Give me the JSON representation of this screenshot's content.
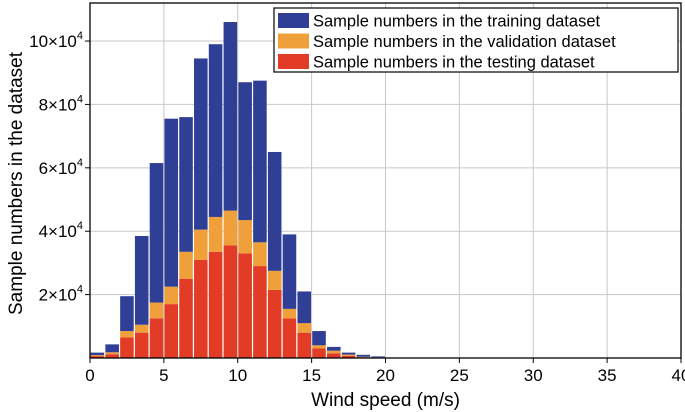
{
  "chart_data": {
    "type": "bar",
    "stacked": true,
    "xlabel": "Wind speed (m/s)",
    "ylabel": "Sample numbers in the dataset",
    "xlim": [
      0,
      40
    ],
    "ylim": [
      0,
      112000
    ],
    "x_ticks": [
      0,
      5,
      10,
      15,
      20,
      25,
      30,
      35,
      40
    ],
    "x_tick_labels": [
      "0",
      "5",
      "10",
      "15",
      "20",
      "25",
      "30",
      "35",
      "40"
    ],
    "y_ticks": [
      20000,
      40000,
      60000,
      80000,
      100000
    ],
    "y_tick_labels": [
      {
        "mantissa": "2×10",
        "exp": "4"
      },
      {
        "mantissa": "4×10",
        "exp": "4"
      },
      {
        "mantissa": "6×10",
        "exp": "4"
      },
      {
        "mantissa": "8×10",
        "exp": "4"
      },
      {
        "mantissa": "10×10",
        "exp": "4"
      }
    ],
    "grid": true,
    "legend_position": "top-right",
    "bin_width": 1,
    "x": [
      0.5,
      1.5,
      2.5,
      3.5,
      4.5,
      5.5,
      6.5,
      7.5,
      8.5,
      9.5,
      10.5,
      11.5,
      12.5,
      13.5,
      14.5,
      15.5,
      16.5,
      17.5,
      18.5,
      19.5
    ],
    "series": [
      {
        "name": "Sample numbers in the testing dataset",
        "color": "#e23b26",
        "values": [
          600,
          1200,
          6500,
          8000,
          12500,
          17000,
          25000,
          31000,
          33500,
          35500,
          33000,
          29000,
          21500,
          12500,
          8000,
          3000,
          1500,
          700,
          200,
          100
        ]
      },
      {
        "name": "Sample numbers in the validation dataset",
        "color": "#f0a03a",
        "values": [
          300,
          600,
          2000,
          2500,
          5000,
          5500,
          8500,
          9500,
          11000,
          11000,
          10500,
          7500,
          6000,
          3000,
          3000,
          1000,
          800,
          400,
          200,
          100
        ]
      },
      {
        "name": "Sample numbers in the training dataset",
        "color": "#2f3f95",
        "values": [
          800,
          2500,
          11000,
          28000,
          44000,
          53000,
          42500,
          54000,
          54500,
          59500,
          43500,
          51000,
          37500,
          23500,
          10000,
          4500,
          1200,
          600,
          600,
          300
        ]
      }
    ]
  }
}
